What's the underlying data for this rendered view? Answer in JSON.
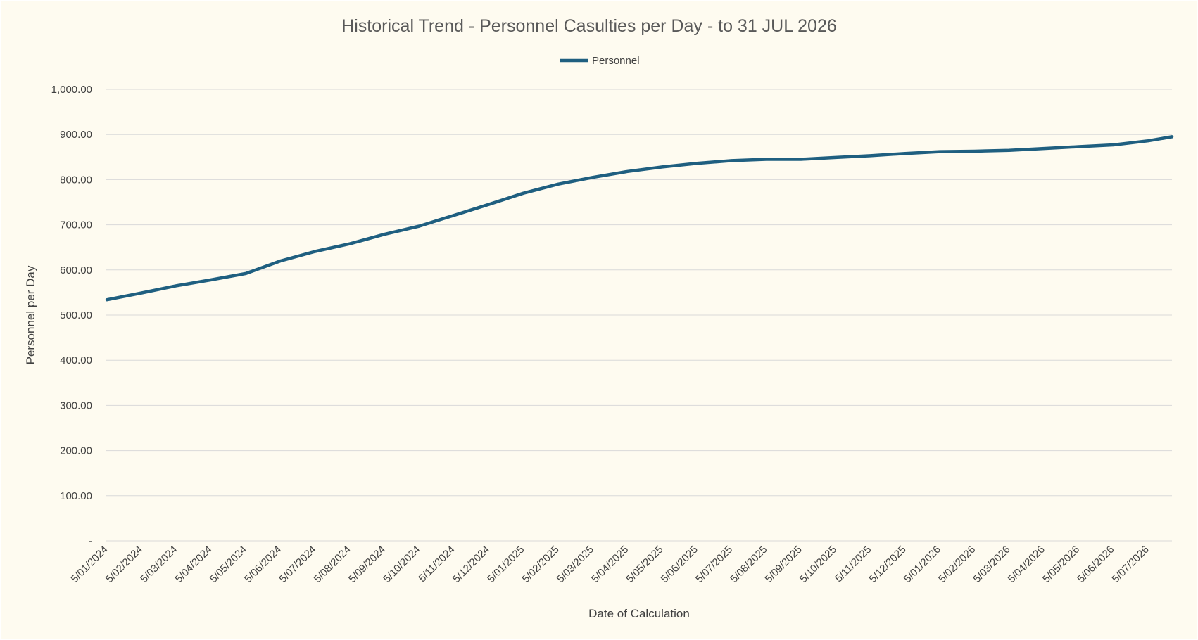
{
  "chart_data": {
    "type": "line",
    "title": "Historical Trend - Personnel Casulties per Day - to 31 JUL 2026",
    "xlabel": "Date of Calculation",
    "ylabel": "Personnel per Day",
    "legend_position": "top",
    "grid": true,
    "ylim": [
      0,
      1000
    ],
    "y_ticks": [
      0,
      100,
      200,
      300,
      400,
      500,
      600,
      700,
      800,
      900,
      1000
    ],
    "y_tick_labels": [
      "-",
      "100.00",
      "200.00",
      "300.00",
      "400.00",
      "500.00",
      "600.00",
      "700.00",
      "800.00",
      "900.00",
      "1,000.00"
    ],
    "x_tick_labels": [
      "5/01/2024",
      "5/02/2024",
      "5/03/2024",
      "5/04/2024",
      "5/05/2024",
      "5/06/2024",
      "5/07/2024",
      "5/08/2024",
      "5/09/2024",
      "5/10/2024",
      "5/11/2024",
      "5/12/2024",
      "5/01/2025",
      "5/02/2025",
      "5/03/2025",
      "5/04/2025",
      "5/05/2025",
      "5/06/2025",
      "5/07/2025",
      "5/08/2025",
      "5/09/2025",
      "5/10/2025",
      "5/11/2025",
      "5/12/2025",
      "5/01/2026",
      "5/02/2026",
      "5/03/2026",
      "5/04/2026",
      "5/05/2026",
      "5/06/2026",
      "5/07/2026"
    ],
    "series": [
      {
        "name": "Personnel",
        "color": "#1f5f80",
        "x": [
          "5/01/2024",
          "5/02/2024",
          "5/03/2024",
          "5/04/2024",
          "5/05/2024",
          "5/06/2024",
          "5/07/2024",
          "5/08/2024",
          "5/09/2024",
          "5/10/2024",
          "5/11/2024",
          "5/12/2024",
          "5/01/2025",
          "5/02/2025",
          "5/03/2025",
          "5/04/2025",
          "5/05/2025",
          "5/06/2025",
          "5/07/2025",
          "5/08/2025",
          "5/09/2025",
          "5/10/2025",
          "5/11/2025",
          "5/12/2025",
          "5/01/2026",
          "5/02/2026",
          "5/03/2026",
          "5/04/2026",
          "5/05/2026",
          "5/06/2026",
          "5/07/2026",
          "31/07/2026"
        ],
        "values": [
          534,
          549,
          565,
          578,
          592,
          620,
          641,
          658,
          679,
          697,
          721,
          745,
          770,
          790,
          805,
          818,
          828,
          836,
          842,
          845,
          845,
          849,
          853,
          858,
          862,
          863,
          865,
          869,
          873,
          877,
          886,
          895
        ]
      }
    ]
  }
}
